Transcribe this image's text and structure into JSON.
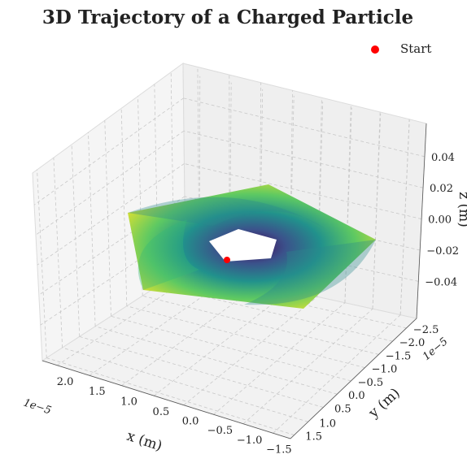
{
  "chart_data": {
    "type": "scatter",
    "projection": "3d",
    "title": "3D Trajectory of a Charged Particle",
    "xlabel": "x (m)",
    "ylabel": "y (m)",
    "zlabel": "z (m)",
    "x_offset_label": "1e−5",
    "y_offset_label": "1e−5",
    "x_ticks": [
      "2.0",
      "1.5",
      "1.0",
      "0.5",
      "0.0",
      "−0.5",
      "−1.0",
      "−1.5"
    ],
    "y_ticks": [
      "−2.5",
      "−2.0",
      "−1.5",
      "−1.0",
      "−0.5",
      "0.0",
      "0.5",
      "1.0",
      "1.5"
    ],
    "z_ticks": [
      "0.04",
      "0.02",
      "0.00",
      "−0.02",
      "−0.04"
    ],
    "xlim": [
      -1.8,
      2.2
    ],
    "ylim": [
      -2.8,
      1.6
    ],
    "zlim": [
      -0.055,
      0.055
    ],
    "grid": true,
    "colormap": "viridis",
    "legend": {
      "entries": [
        "Start"
      ],
      "location": "upper-right"
    },
    "start_marker_color": "#ff0000",
    "trajectory_outer_vertices_xy": [
      [
        1.85,
        -1.95
      ],
      [
        -1.55,
        -1.75
      ],
      [
        -1.1,
        1.05
      ],
      [
        1.9,
        1.1
      ],
      [
        2.05,
        -0.75
      ]
    ],
    "trajectory_inner_vertices_xy": [
      [
        0.42,
        -0.35
      ],
      [
        -0.35,
        -0.3
      ],
      [
        -0.25,
        0.25
      ],
      [
        0.28,
        0.35
      ],
      [
        0.45,
        0.0
      ]
    ],
    "start_point_xy": [
      0.3,
      0.35
    ]
  }
}
